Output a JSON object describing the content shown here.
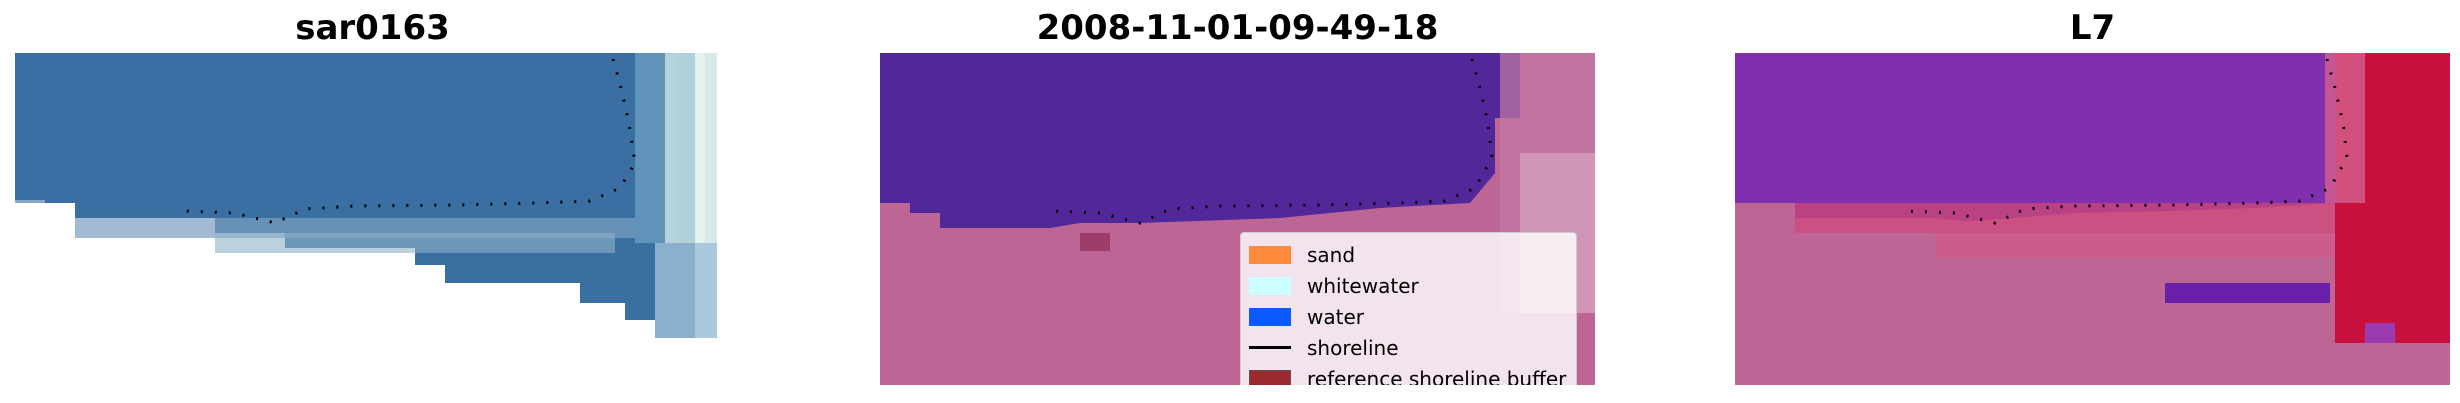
{
  "panels": [
    {
      "title": "sar0163",
      "kind": "rgb"
    },
    {
      "title": "2008-11-01-09-49-18",
      "kind": "classification"
    },
    {
      "title": "L7",
      "kind": "index"
    }
  ],
  "legend": [
    {
      "label": "sand",
      "color": "#ff8c3c"
    },
    {
      "label": "whitewater",
      "color": "#ccffff"
    },
    {
      "label": "water",
      "color": "#0a5aff"
    },
    {
      "label": "shoreline",
      "color": "#000000",
      "type": "line"
    },
    {
      "label": "reference shoreline buffer",
      "color": "#9b2a2e"
    }
  ],
  "colors": {
    "water_rgb": "#3a6fa2",
    "deep_class": "#52279a",
    "buffer_pink": "#bd6696",
    "index_purple": "#7a2aa8",
    "index_red": "#c8103c"
  }
}
